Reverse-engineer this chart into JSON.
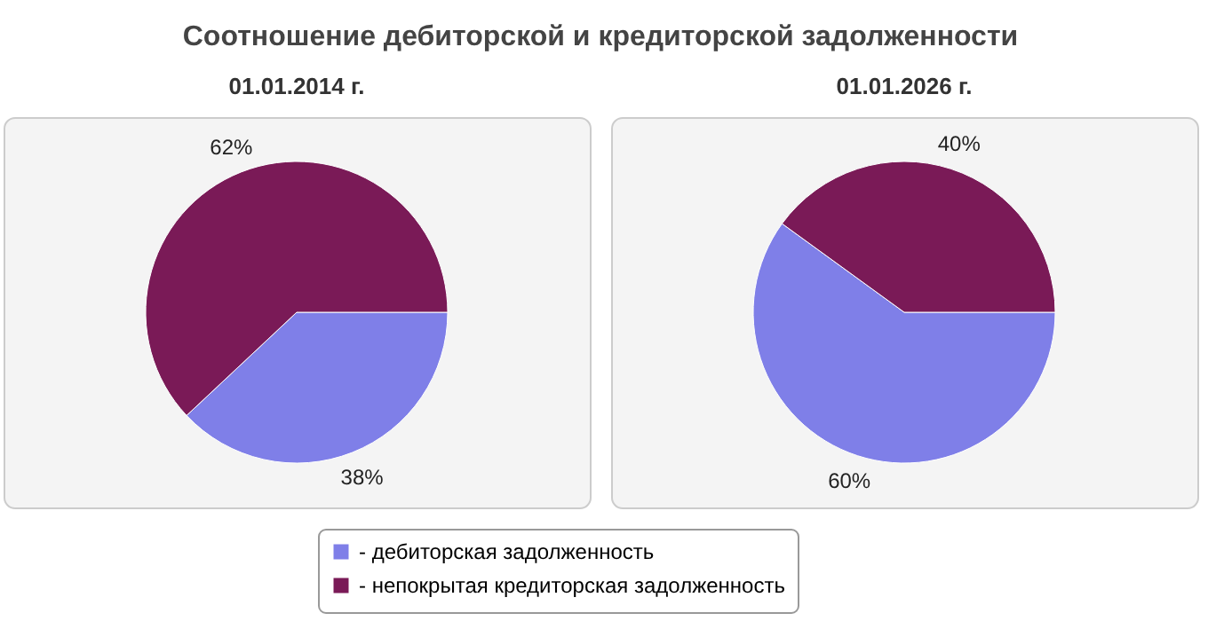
{
  "chart_data": [
    {
      "type": "pie",
      "title": "Соотношение дебиторской и кредиторской задолженности",
      "subtitle": "01.01.2014 г.",
      "categories": [
        "- дебиторская задолженность",
        "- непокрытая кредиторская задолженность"
      ],
      "values": [
        38,
        62
      ],
      "colors": [
        "#7f7fe8",
        "#7a1a57"
      ],
      "value_labels": [
        "38%",
        "62%"
      ],
      "legend": "bottom"
    },
    {
      "type": "pie",
      "title": "01.01.2026 г.",
      "values": [
        60,
        40
      ],
      "colors": [
        "#7f7fe8",
        "#7a1a57"
      ],
      "value_labels": [
        "60%",
        "40%"
      ]
    }
  ]
}
